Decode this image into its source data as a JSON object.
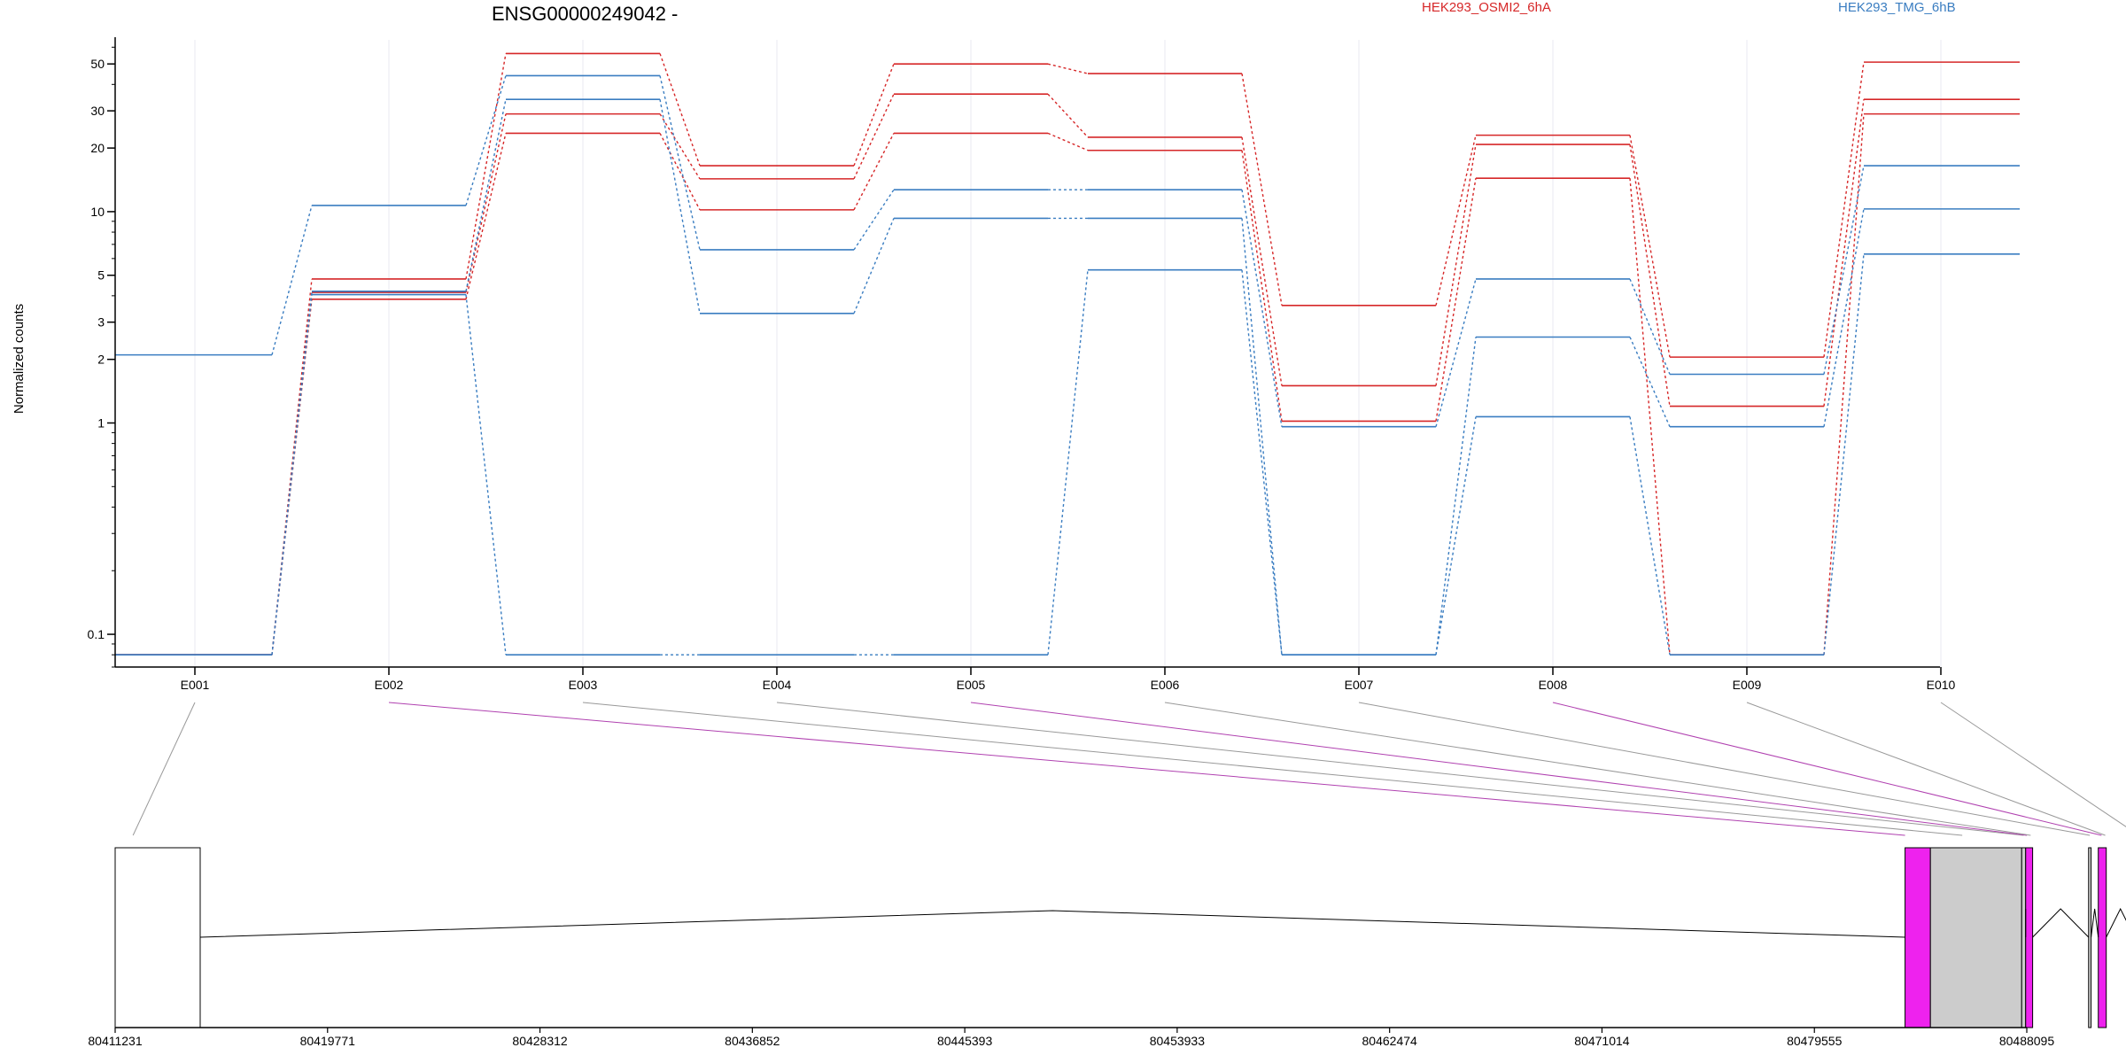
{
  "chart_data": {
    "type": "line",
    "title": "ENSG00000249042 -",
    "ylabel": "Normalized counts",
    "yscale": "log",
    "ylim": [
      0.07,
      65
    ],
    "yticks": [
      0.1,
      1,
      2,
      3,
      5,
      10,
      20,
      30,
      50
    ],
    "grid": "vertical",
    "categories": [
      "E001",
      "E002",
      "E003",
      "E004",
      "E005",
      "E006",
      "E007",
      "E008",
      "E009",
      "E010"
    ],
    "legend": [
      {
        "name": "HEK293_OSMI2_6hA",
        "color": "#d62728"
      },
      {
        "name": "HEK293_TMG_6hB",
        "color": "#3a7dc1"
      }
    ],
    "series": [
      {
        "group": "HEK293_OSMI2_6hA",
        "color": "#d62728",
        "values": [
          0.08,
          4.8,
          56,
          16.5,
          50,
          45,
          3.6,
          23,
          2.05,
          51
        ]
      },
      {
        "group": "HEK293_OSMI2_6hA",
        "color": "#d62728",
        "values": [
          0.08,
          4.15,
          29,
          14.3,
          36,
          22.5,
          1.5,
          20.8,
          1.2,
          34
        ]
      },
      {
        "group": "HEK293_OSMI2_6hA",
        "color": "#d62728",
        "values": [
          0.08,
          3.85,
          23.5,
          10.2,
          23.5,
          19.5,
          1.02,
          14.4,
          0.08,
          29
        ]
      },
      {
        "group": "HEK293_TMG_6hB",
        "color": "#3a7dc1",
        "values": [
          2.1,
          10.7,
          44,
          6.6,
          12.7,
          12.7,
          0.96,
          4.8,
          1.7,
          16.5
        ]
      },
      {
        "group": "HEK293_TMG_6hB",
        "color": "#3a7dc1",
        "values": [
          0.08,
          4.2,
          34,
          3.3,
          9.3,
          9.3,
          0.08,
          2.55,
          0.96,
          10.3
        ]
      },
      {
        "group": "HEK293_TMG_6hB",
        "color": "#3a7dc1",
        "values": [
          0.08,
          4.05,
          0.08,
          0.08,
          0.08,
          5.3,
          0.08,
          1.07,
          0.08,
          6.3
        ]
      }
    ],
    "gene_model": {
      "coord_ticks": [
        "80411231",
        "80419771",
        "80428312",
        "80436852",
        "80445393",
        "80453933",
        "80462474",
        "80471014",
        "80479555",
        "80488095"
      ],
      "exons": [
        {
          "start": 80411231,
          "end": 80414650,
          "color": "#ffffff"
        },
        {
          "start": 80483200,
          "end": 80484220,
          "color": "#ee22ee"
        },
        {
          "start": 80484220,
          "end": 80487890,
          "color": "#cccccc"
        },
        {
          "start": 80487890,
          "end": 80488050,
          "color": "#cccccc"
        },
        {
          "start": 80488050,
          "end": 80488330,
          "color": "#ee22ee"
        },
        {
          "start": 80490580,
          "end": 80490680,
          "color": "#cccccc"
        },
        {
          "start": 80490970,
          "end": 80491290,
          "color": "#ee22ee"
        },
        {
          "start": 80492430,
          "end": 80492750,
          "color": "#cccccc"
        }
      ],
      "exon_links": [
        {
          "label": "E001",
          "genomic": 80411950,
          "color": "#999999"
        },
        {
          "label": "E002",
          "genomic": 80483200,
          "color": "#b041b0"
        },
        {
          "label": "E003",
          "genomic": 80485500,
          "color": "#999999"
        },
        {
          "label": "E004",
          "genomic": 80487970,
          "color": "#999999"
        },
        {
          "label": "E005",
          "genomic": 80488100,
          "color": "#b041b0"
        },
        {
          "label": "E006",
          "genomic": 80488250,
          "color": "#999999"
        },
        {
          "label": "E007",
          "genomic": 80490630,
          "color": "#999999"
        },
        {
          "label": "E008",
          "genomic": 80491100,
          "color": "#b041b0"
        },
        {
          "label": "E009",
          "genomic": 80491250,
          "color": "#999999"
        },
        {
          "label": "E010",
          "genomic": 80492600,
          "color": "#999999"
        }
      ]
    }
  }
}
